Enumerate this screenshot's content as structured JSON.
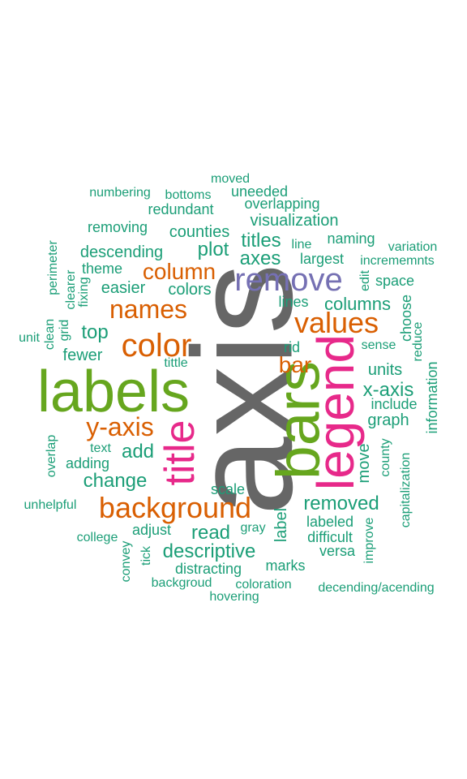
{
  "palette": {
    "teal": "#1b9e77",
    "orange": "#d95f02",
    "purple": "#7570b3",
    "magenta": "#e7298a",
    "green": "#66a61e",
    "gray": "#666666"
  },
  "words": [
    {
      "text": "axis",
      "color": "gray",
      "rotated": true
    },
    {
      "text": "labels",
      "color": "green",
      "rotated": false
    },
    {
      "text": "bars",
      "color": "green",
      "rotated": true
    },
    {
      "text": "legend",
      "color": "magenta",
      "rotated": true
    },
    {
      "text": "title",
      "color": "magenta",
      "rotated": true
    },
    {
      "text": "remove",
      "color": "purple",
      "rotated": false
    },
    {
      "text": "background",
      "color": "orange",
      "rotated": false
    },
    {
      "text": "color",
      "color": "orange",
      "rotated": false
    },
    {
      "text": "values",
      "color": "orange",
      "rotated": false
    },
    {
      "text": "names",
      "color": "orange",
      "rotated": false
    },
    {
      "text": "y-axis",
      "color": "orange",
      "rotated": false
    },
    {
      "text": "column",
      "color": "orange",
      "rotated": false
    },
    {
      "text": "bar",
      "color": "orange",
      "rotated": false
    },
    {
      "text": "x-axis",
      "color": "teal",
      "rotated": false
    },
    {
      "text": "removed",
      "color": "teal",
      "rotated": false
    },
    {
      "text": "change",
      "color": "teal",
      "rotated": false
    },
    {
      "text": "descriptive",
      "color": "teal",
      "rotated": false
    },
    {
      "text": "top",
      "color": "teal",
      "rotated": false
    },
    {
      "text": "plot",
      "color": "teal",
      "rotated": false
    },
    {
      "text": "titles",
      "color": "teal",
      "rotated": false
    },
    {
      "text": "axes",
      "color": "teal",
      "rotated": false
    },
    {
      "text": "columns",
      "color": "teal",
      "rotated": false
    },
    {
      "text": "read",
      "color": "teal",
      "rotated": false
    },
    {
      "text": "add",
      "color": "teal",
      "rotated": false
    },
    {
      "text": "move",
      "color": "teal",
      "rotated": true
    },
    {
      "text": "label",
      "color": "teal",
      "rotated": true
    },
    {
      "text": "visualization",
      "color": "teal",
      "rotated": false
    },
    {
      "text": "counties",
      "color": "teal",
      "rotated": false
    },
    {
      "text": "descending",
      "color": "teal",
      "rotated": false
    },
    {
      "text": "colors",
      "color": "teal",
      "rotated": false
    },
    {
      "text": "easier",
      "color": "teal",
      "rotated": false
    },
    {
      "text": "fewer",
      "color": "teal",
      "rotated": false
    },
    {
      "text": "lines",
      "color": "teal",
      "rotated": false
    },
    {
      "text": "largest",
      "color": "teal",
      "rotated": false
    },
    {
      "text": "units",
      "color": "teal",
      "rotated": false
    },
    {
      "text": "graph",
      "color": "teal",
      "rotated": false
    },
    {
      "text": "labeled",
      "color": "teal",
      "rotated": false
    },
    {
      "text": "redundant",
      "color": "teal",
      "rotated": false
    },
    {
      "text": "removing",
      "color": "teal",
      "rotated": false
    },
    {
      "text": "overlapping",
      "color": "teal",
      "rotated": false
    },
    {
      "text": "uneeded",
      "color": "teal",
      "rotated": false
    },
    {
      "text": "naming",
      "color": "teal",
      "rotated": false
    },
    {
      "text": "space",
      "color": "teal",
      "rotated": false
    },
    {
      "text": "theme",
      "color": "teal",
      "rotated": false
    },
    {
      "text": "include",
      "color": "teal",
      "rotated": false
    },
    {
      "text": "difficult",
      "color": "teal",
      "rotated": false
    },
    {
      "text": "versa",
      "color": "teal",
      "rotated": false
    },
    {
      "text": "marks",
      "color": "teal",
      "rotated": false
    },
    {
      "text": "distracting",
      "color": "teal",
      "rotated": false
    },
    {
      "text": "adjust",
      "color": "teal",
      "rotated": false
    },
    {
      "text": "adding",
      "color": "teal",
      "rotated": false
    },
    {
      "text": "text",
      "color": "teal",
      "rotated": false
    },
    {
      "text": "scale",
      "color": "teal",
      "rotated": false
    },
    {
      "text": "rid",
      "color": "teal",
      "rotated": false
    },
    {
      "text": "moved",
      "color": "teal",
      "rotated": false
    },
    {
      "text": "numbering",
      "color": "teal",
      "rotated": false
    },
    {
      "text": "bottoms",
      "color": "teal",
      "rotated": false
    },
    {
      "text": "line",
      "color": "teal",
      "rotated": false
    },
    {
      "text": "variation",
      "color": "teal",
      "rotated": false
    },
    {
      "text": "incrememnts",
      "color": "teal",
      "rotated": false
    },
    {
      "text": "sense",
      "color": "teal",
      "rotated": false
    },
    {
      "text": "tittle",
      "color": "teal",
      "rotated": false
    },
    {
      "text": "unit",
      "color": "teal",
      "rotated": false
    },
    {
      "text": "unhelpful",
      "color": "teal",
      "rotated": false
    },
    {
      "text": "college",
      "color": "teal",
      "rotated": false
    },
    {
      "text": "gray",
      "color": "teal",
      "rotated": false
    },
    {
      "text": "backgroud",
      "color": "teal",
      "rotated": false
    },
    {
      "text": "coloration",
      "color": "teal",
      "rotated": false
    },
    {
      "text": "hovering",
      "color": "teal",
      "rotated": false
    },
    {
      "text": "decending/acending",
      "color": "teal",
      "rotated": false
    },
    {
      "text": "perimeter",
      "color": "teal",
      "rotated": true
    },
    {
      "text": "fixing",
      "color": "teal",
      "rotated": true
    },
    {
      "text": "clearer",
      "color": "teal",
      "rotated": true
    },
    {
      "text": "grid",
      "color": "teal",
      "rotated": true
    },
    {
      "text": "clean",
      "color": "teal",
      "rotated": true
    },
    {
      "text": "overlap",
      "color": "teal",
      "rotated": true
    },
    {
      "text": "convey",
      "color": "teal",
      "rotated": true
    },
    {
      "text": "tick",
      "color": "teal",
      "rotated": true
    },
    {
      "text": "edit",
      "color": "teal",
      "rotated": true
    },
    {
      "text": "choose",
      "color": "teal",
      "rotated": true
    },
    {
      "text": "reduce",
      "color": "teal",
      "rotated": true
    },
    {
      "text": "information",
      "color": "teal",
      "rotated": true
    },
    {
      "text": "county",
      "color": "teal",
      "rotated": true
    },
    {
      "text": "capitalization",
      "color": "teal",
      "rotated": true
    },
    {
      "text": "improve",
      "color": "teal",
      "rotated": true
    }
  ]
}
